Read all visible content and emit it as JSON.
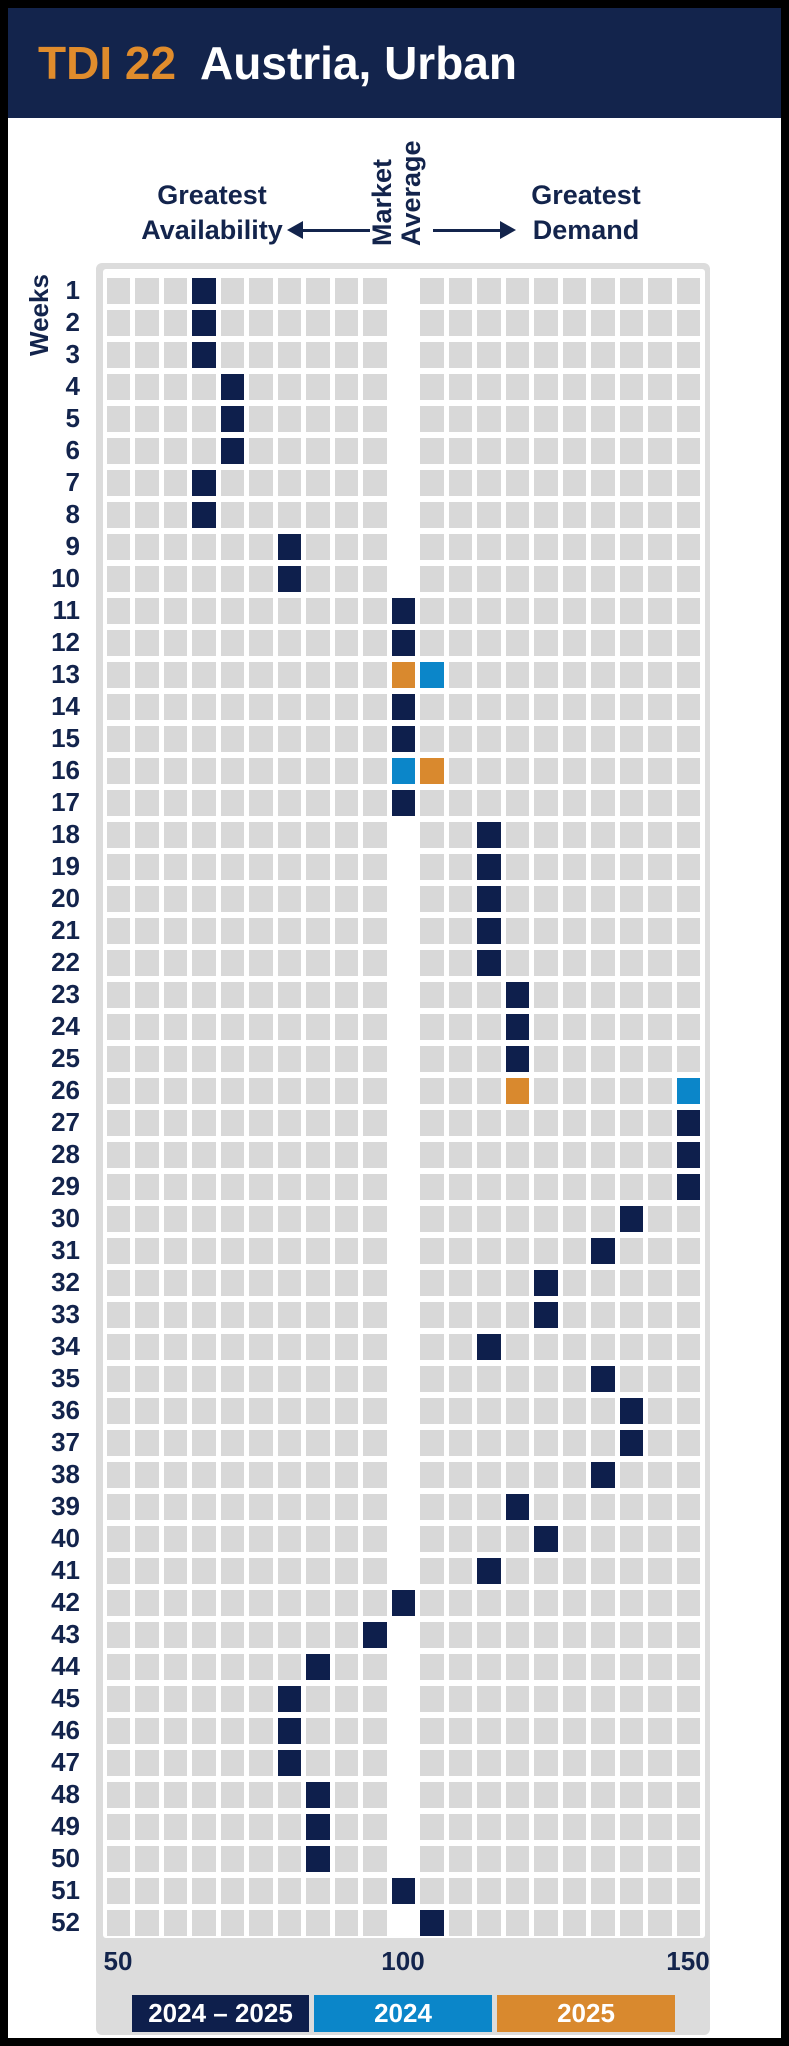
{
  "header": {
    "index_label": "TDI 22",
    "region_label": "Austria, Urban"
  },
  "annotations": {
    "left": "Greatest Availability",
    "center": "Market\nAverage",
    "right": "Greatest Demand"
  },
  "x_axis": {
    "ticks": [
      "50",
      "100",
      "150"
    ]
  },
  "legend": {
    "items": [
      {
        "label": "2024 – 2025",
        "color": "#0e1f4c"
      },
      {
        "label": "2024",
        "color": "#0b86c9"
      },
      {
        "label": "2025",
        "color": "#d9892e"
      }
    ]
  },
  "chart_data": {
    "type": "heatmap",
    "title": "TDI 22 Austria, Urban",
    "x_axis": {
      "min": 50,
      "max": 150,
      "column_step": 5,
      "market_average": 100,
      "ticks": [
        50,
        100,
        150
      ]
    },
    "y_axis": {
      "title": "Weeks",
      "min": 1,
      "max": 52
    },
    "series_colors": {
      "2024-2025": "#0e1f4c",
      "2024": "#0b86c9",
      "2025": "#d9892e"
    },
    "weeks": [
      {
        "week": 1,
        "cells": [
          {
            "series": "2024-2025",
            "tdi": 65
          }
        ]
      },
      {
        "week": 2,
        "cells": [
          {
            "series": "2024-2025",
            "tdi": 65
          }
        ]
      },
      {
        "week": 3,
        "cells": [
          {
            "series": "2024-2025",
            "tdi": 65
          }
        ]
      },
      {
        "week": 4,
        "cells": [
          {
            "series": "2024-2025",
            "tdi": 70
          }
        ]
      },
      {
        "week": 5,
        "cells": [
          {
            "series": "2024-2025",
            "tdi": 70
          }
        ]
      },
      {
        "week": 6,
        "cells": [
          {
            "series": "2024-2025",
            "tdi": 70
          }
        ]
      },
      {
        "week": 7,
        "cells": [
          {
            "series": "2024-2025",
            "tdi": 65
          }
        ]
      },
      {
        "week": 8,
        "cells": [
          {
            "series": "2024-2025",
            "tdi": 65
          }
        ]
      },
      {
        "week": 9,
        "cells": [
          {
            "series": "2024-2025",
            "tdi": 80
          }
        ]
      },
      {
        "week": 10,
        "cells": [
          {
            "series": "2024-2025",
            "tdi": 80
          }
        ]
      },
      {
        "week": 11,
        "cells": [
          {
            "series": "2024-2025",
            "tdi": 100
          }
        ]
      },
      {
        "week": 12,
        "cells": [
          {
            "series": "2024-2025",
            "tdi": 100
          }
        ]
      },
      {
        "week": 13,
        "cells": [
          {
            "series": "2025",
            "tdi": 100
          },
          {
            "series": "2024",
            "tdi": 105
          }
        ]
      },
      {
        "week": 14,
        "cells": [
          {
            "series": "2024-2025",
            "tdi": 100
          }
        ]
      },
      {
        "week": 15,
        "cells": [
          {
            "series": "2024-2025",
            "tdi": 100
          }
        ]
      },
      {
        "week": 16,
        "cells": [
          {
            "series": "2024",
            "tdi": 100
          },
          {
            "series": "2025",
            "tdi": 105
          }
        ]
      },
      {
        "week": 17,
        "cells": [
          {
            "series": "2024-2025",
            "tdi": 100
          }
        ]
      },
      {
        "week": 18,
        "cells": [
          {
            "series": "2024-2025",
            "tdi": 115
          }
        ]
      },
      {
        "week": 19,
        "cells": [
          {
            "series": "2024-2025",
            "tdi": 115
          }
        ]
      },
      {
        "week": 20,
        "cells": [
          {
            "series": "2024-2025",
            "tdi": 115
          }
        ]
      },
      {
        "week": 21,
        "cells": [
          {
            "series": "2024-2025",
            "tdi": 115
          }
        ]
      },
      {
        "week": 22,
        "cells": [
          {
            "series": "2024-2025",
            "tdi": 115
          }
        ]
      },
      {
        "week": 23,
        "cells": [
          {
            "series": "2024-2025",
            "tdi": 120
          }
        ]
      },
      {
        "week": 24,
        "cells": [
          {
            "series": "2024-2025",
            "tdi": 120
          }
        ]
      },
      {
        "week": 25,
        "cells": [
          {
            "series": "2024-2025",
            "tdi": 120
          }
        ]
      },
      {
        "week": 26,
        "cells": [
          {
            "series": "2025",
            "tdi": 120
          },
          {
            "series": "2024",
            "tdi": 150
          }
        ]
      },
      {
        "week": 27,
        "cells": [
          {
            "series": "2024-2025",
            "tdi": 150
          }
        ]
      },
      {
        "week": 28,
        "cells": [
          {
            "series": "2024-2025",
            "tdi": 150
          }
        ]
      },
      {
        "week": 29,
        "cells": [
          {
            "series": "2024-2025",
            "tdi": 150
          }
        ]
      },
      {
        "week": 30,
        "cells": [
          {
            "series": "2024-2025",
            "tdi": 140
          }
        ]
      },
      {
        "week": 31,
        "cells": [
          {
            "series": "2024-2025",
            "tdi": 135
          }
        ]
      },
      {
        "week": 32,
        "cells": [
          {
            "series": "2024-2025",
            "tdi": 125
          }
        ]
      },
      {
        "week": 33,
        "cells": [
          {
            "series": "2024-2025",
            "tdi": 125
          }
        ]
      },
      {
        "week": 34,
        "cells": [
          {
            "series": "2024-2025",
            "tdi": 115
          }
        ]
      },
      {
        "week": 35,
        "cells": [
          {
            "series": "2024-2025",
            "tdi": 135
          }
        ]
      },
      {
        "week": 36,
        "cells": [
          {
            "series": "2024-2025",
            "tdi": 140
          }
        ]
      },
      {
        "week": 37,
        "cells": [
          {
            "series": "2024-2025",
            "tdi": 140
          }
        ]
      },
      {
        "week": 38,
        "cells": [
          {
            "series": "2024-2025",
            "tdi": 135
          }
        ]
      },
      {
        "week": 39,
        "cells": [
          {
            "series": "2024-2025",
            "tdi": 120
          }
        ]
      },
      {
        "week": 40,
        "cells": [
          {
            "series": "2024-2025",
            "tdi": 125
          }
        ]
      },
      {
        "week": 41,
        "cells": [
          {
            "series": "2024-2025",
            "tdi": 115
          }
        ]
      },
      {
        "week": 42,
        "cells": [
          {
            "series": "2024-2025",
            "tdi": 100
          }
        ]
      },
      {
        "week": 43,
        "cells": [
          {
            "series": "2024-2025",
            "tdi": 95
          }
        ]
      },
      {
        "week": 44,
        "cells": [
          {
            "series": "2024-2025",
            "tdi": 85
          }
        ]
      },
      {
        "week": 45,
        "cells": [
          {
            "series": "2024-2025",
            "tdi": 80
          }
        ]
      },
      {
        "week": 46,
        "cells": [
          {
            "series": "2024-2025",
            "tdi": 80
          }
        ]
      },
      {
        "week": 47,
        "cells": [
          {
            "series": "2024-2025",
            "tdi": 80
          }
        ]
      },
      {
        "week": 48,
        "cells": [
          {
            "series": "2024-2025",
            "tdi": 85
          }
        ]
      },
      {
        "week": 49,
        "cells": [
          {
            "series": "2024-2025",
            "tdi": 85
          }
        ]
      },
      {
        "week": 50,
        "cells": [
          {
            "series": "2024-2025",
            "tdi": 85
          }
        ]
      },
      {
        "week": 51,
        "cells": [
          {
            "series": "2024-2025",
            "tdi": 100
          }
        ]
      },
      {
        "week": 52,
        "cells": [
          {
            "series": "2024-2025",
            "tdi": 105
          }
        ]
      }
    ]
  }
}
